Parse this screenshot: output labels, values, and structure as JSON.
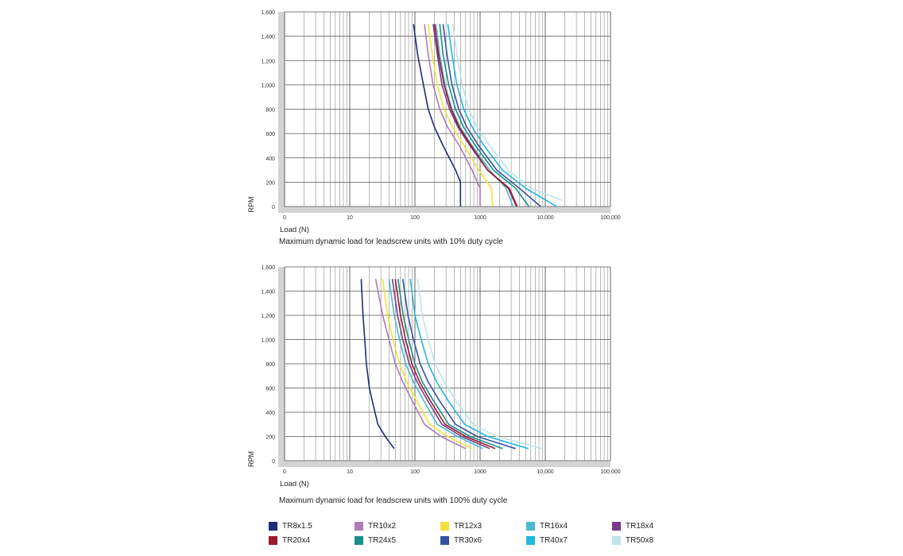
{
  "chart_data": [
    {
      "type": "line",
      "title": "",
      "caption": "Maximum dynamic load for leadscrew units with 10% duty cycle",
      "xlabel": "Load (N)",
      "ylabel": "RPM",
      "x_scale": "log",
      "xlim": [
        1,
        100000
      ],
      "ylim": [
        0,
        1600
      ],
      "x_ticks": [
        "0",
        "10",
        "100",
        "1000",
        "10,000",
        "100,000"
      ],
      "y_ticks": [
        "0",
        "200",
        "400",
        "600",
        "800",
        "1,000",
        "1,200",
        "1,400",
        "1,600"
      ],
      "grid": true,
      "series": [
        {
          "name": "TR8x1.5",
          "x": [
            95,
            110,
            135,
            160,
            200,
            270,
            420,
            500,
            500
          ],
          "y": [
            1500,
            1250,
            1000,
            800,
            650,
            500,
            300,
            200,
            0
          ]
        },
        {
          "name": "TR10x2",
          "x": [
            140,
            160,
            190,
            240,
            320,
            480,
            750,
            1000,
            1000
          ],
          "y": [
            1500,
            1250,
            1000,
            800,
            650,
            500,
            300,
            150,
            0
          ]
        },
        {
          "name": "TR12x3",
          "x": [
            160,
            185,
            220,
            280,
            380,
            570,
            950,
            1500,
            1550
          ],
          "y": [
            1500,
            1250,
            1000,
            800,
            650,
            500,
            300,
            150,
            0
          ]
        },
        {
          "name": "TR16x4",
          "x": [
            210,
            240,
            290,
            370,
            500,
            750,
            1400,
            2500,
            3200
          ],
          "y": [
            1500,
            1250,
            1000,
            800,
            650,
            500,
            300,
            150,
            0
          ]
        },
        {
          "name": "TR18x4",
          "x": [
            190,
            220,
            260,
            340,
            460,
            700,
            1300,
            2700,
            3600
          ],
          "y": [
            1500,
            1250,
            1000,
            800,
            650,
            500,
            300,
            150,
            0
          ]
        },
        {
          "name": "TR20x4",
          "x": [
            200,
            230,
            280,
            360,
            480,
            730,
            1300,
            2800,
            3700
          ],
          "y": [
            1500,
            1250,
            1000,
            800,
            650,
            500,
            300,
            150,
            0
          ]
        },
        {
          "name": "TR24x5",
          "x": [
            240,
            270,
            330,
            420,
            560,
            850,
            1600,
            3500,
            5600
          ],
          "y": [
            1500,
            1250,
            1000,
            800,
            650,
            500,
            300,
            150,
            0
          ]
        },
        {
          "name": "TR30x6",
          "x": [
            270,
            310,
            370,
            470,
            630,
            950,
            1800,
            4000,
            8500
          ],
          "y": [
            1500,
            1250,
            1000,
            800,
            650,
            500,
            300,
            150,
            0
          ]
        },
        {
          "name": "TR40x7",
          "x": [
            320,
            370,
            440,
            560,
            760,
            1150,
            2200,
            5000,
            15000
          ],
          "y": [
            1500,
            1250,
            1000,
            800,
            650,
            500,
            300,
            150,
            0
          ]
        },
        {
          "name": "TR50x8",
          "x": [
            380,
            440,
            530,
            670,
            900,
            1400,
            2700,
            6000,
            18000
          ],
          "y": [
            1500,
            1250,
            1000,
            800,
            650,
            500,
            300,
            150,
            50
          ]
        }
      ]
    },
    {
      "type": "line",
      "title": "",
      "caption": "Maximum dynamic load for leadscrew units with 100% duty cycle",
      "xlabel": "Load (N)",
      "ylabel": "RPM",
      "x_scale": "log",
      "xlim": [
        1,
        100000
      ],
      "ylim": [
        0,
        1600
      ],
      "x_ticks": [
        "0",
        "10",
        "100",
        "1000",
        "10,000",
        "100,000"
      ],
      "y_ticks": [
        "0",
        "200",
        "400",
        "600",
        "800",
        "1,000",
        "1,200",
        "1,400",
        "1,600"
      ],
      "grid": true,
      "series": [
        {
          "name": "TR8x1.5",
          "x": [
            15,
            16,
            17,
            18,
            20,
            22,
            27,
            35,
            48
          ],
          "y": [
            1500,
            1200,
            1000,
            800,
            600,
            500,
            300,
            200,
            100
          ]
        },
        {
          "name": "TR10x2",
          "x": [
            25,
            32,
            40,
            50,
            65,
            90,
            140,
            250,
            600
          ],
          "y": [
            1500,
            1200,
            1000,
            800,
            650,
            500,
            300,
            200,
            100
          ]
        },
        {
          "name": "TR12x3",
          "x": [
            32,
            38,
            46,
            58,
            75,
            105,
            170,
            320,
            750
          ],
          "y": [
            1500,
            1200,
            1000,
            800,
            650,
            500,
            300,
            200,
            100
          ]
        },
        {
          "name": "TR16x4",
          "x": [
            40,
            48,
            58,
            72,
            95,
            135,
            220,
            450,
            1100
          ],
          "y": [
            1500,
            1200,
            1000,
            800,
            650,
            500,
            300,
            200,
            100
          ]
        },
        {
          "name": "TR18x4",
          "x": [
            45,
            54,
            65,
            82,
            108,
            155,
            260,
            520,
            1400
          ],
          "y": [
            1500,
            1200,
            1000,
            800,
            650,
            500,
            300,
            200,
            100
          ]
        },
        {
          "name": "TR20x4",
          "x": [
            50,
            60,
            72,
            90,
            118,
            170,
            290,
            600,
            1700
          ],
          "y": [
            1500,
            1200,
            1000,
            800,
            650,
            500,
            300,
            200,
            100
          ]
        },
        {
          "name": "TR24x5",
          "x": [
            55,
            66,
            80,
            100,
            130,
            190,
            330,
            700,
            2200
          ],
          "y": [
            1500,
            1200,
            1000,
            800,
            650,
            500,
            300,
            200,
            100
          ]
        },
        {
          "name": "TR30x6",
          "x": [
            65,
            78,
            95,
            120,
            160,
            235,
            420,
            900,
            3500
          ],
          "y": [
            1500,
            1200,
            1000,
            800,
            650,
            500,
            300,
            200,
            100
          ]
        },
        {
          "name": "TR40x7",
          "x": [
            85,
            100,
            125,
            160,
            215,
            320,
            580,
            1300,
            5500
          ],
          "y": [
            1500,
            1200,
            1000,
            800,
            650,
            500,
            300,
            200,
            100
          ]
        },
        {
          "name": "TR50x8",
          "x": [
            110,
            130,
            160,
            205,
            280,
            420,
            780,
            1800,
            9000
          ],
          "y": [
            1500,
            1200,
            1000,
            800,
            650,
            500,
            300,
            200,
            100
          ]
        }
      ]
    }
  ],
  "legend": [
    {
      "label": "TR8x1.5",
      "color": "#1f2a7a"
    },
    {
      "label": "TR10x2",
      "color": "#b07ab8"
    },
    {
      "label": "TR12x3",
      "color": "#f0e23a"
    },
    {
      "label": "TR16x4",
      "color": "#4bb9cf"
    },
    {
      "label": "TR18x4",
      "color": "#7a3a8a"
    },
    {
      "label": "TR20x4",
      "color": "#9b1b2a"
    },
    {
      "label": "TR24x5",
      "color": "#17908a"
    },
    {
      "label": "TR30x6",
      "color": "#3552a0"
    },
    {
      "label": "TR40x7",
      "color": "#24b6e0"
    },
    {
      "label": "TR50x8",
      "color": "#bfe3ec"
    }
  ]
}
